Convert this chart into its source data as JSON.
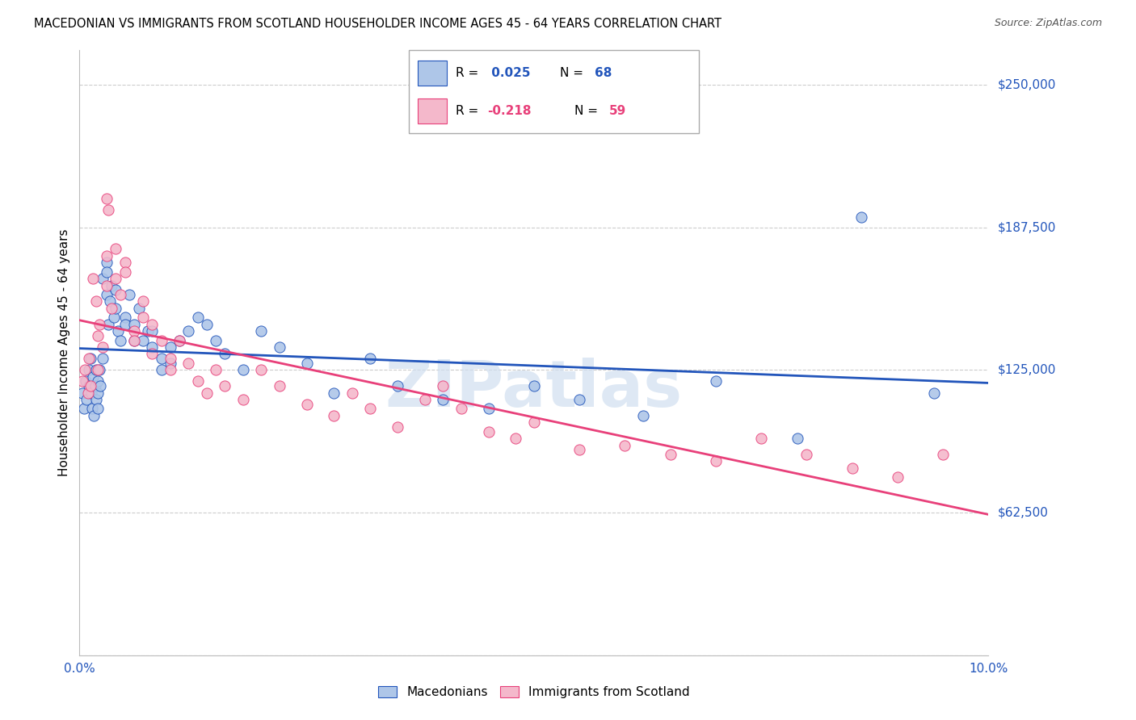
{
  "title": "MACEDONIAN VS IMMIGRANTS FROM SCOTLAND HOUSEHOLDER INCOME AGES 45 - 64 YEARS CORRELATION CHART",
  "source": "Source: ZipAtlas.com",
  "ylabel": "Householder Income Ages 45 - 64 years",
  "xlim": [
    0.0,
    0.1
  ],
  "ylim": [
    0,
    265000
  ],
  "yticks": [
    0,
    62500,
    125000,
    187500,
    250000
  ],
  "ytick_labels": [
    "",
    "$62,500",
    "$125,000",
    "$187,500",
    "$250,000"
  ],
  "xticks": [
    0.0,
    0.01,
    0.02,
    0.03,
    0.04,
    0.05,
    0.06,
    0.07,
    0.08,
    0.09,
    0.1
  ],
  "xtick_labels": [
    "0.0%",
    "",
    "",
    "",
    "",
    "",
    "",
    "",
    "",
    "",
    "10.0%"
  ],
  "series1_color": "#aec6e8",
  "series2_color": "#f4b8cb",
  "line1_color": "#2255bb",
  "line2_color": "#e8407a",
  "watermark": "ZIPatlas",
  "macedonians_x": [
    0.0003,
    0.0005,
    0.0007,
    0.0008,
    0.001,
    0.001,
    0.0012,
    0.0013,
    0.0014,
    0.0015,
    0.0016,
    0.0017,
    0.0018,
    0.0018,
    0.002,
    0.002,
    0.002,
    0.0022,
    0.0023,
    0.0025,
    0.0025,
    0.003,
    0.003,
    0.003,
    0.0032,
    0.0033,
    0.0035,
    0.0038,
    0.004,
    0.004,
    0.0042,
    0.0045,
    0.005,
    0.005,
    0.0055,
    0.006,
    0.006,
    0.0065,
    0.007,
    0.0075,
    0.008,
    0.008,
    0.009,
    0.009,
    0.01,
    0.01,
    0.011,
    0.012,
    0.013,
    0.014,
    0.015,
    0.016,
    0.018,
    0.02,
    0.022,
    0.025,
    0.028,
    0.032,
    0.035,
    0.04,
    0.045,
    0.05,
    0.055,
    0.062,
    0.07,
    0.079,
    0.086,
    0.094
  ],
  "macedonians_y": [
    115000,
    108000,
    120000,
    112000,
    125000,
    118000,
    130000,
    115000,
    108000,
    122000,
    105000,
    118000,
    112000,
    125000,
    120000,
    115000,
    108000,
    125000,
    118000,
    130000,
    165000,
    172000,
    168000,
    158000,
    145000,
    155000,
    162000,
    148000,
    152000,
    160000,
    142000,
    138000,
    148000,
    145000,
    158000,
    145000,
    138000,
    152000,
    138000,
    142000,
    135000,
    142000,
    130000,
    125000,
    135000,
    128000,
    138000,
    142000,
    148000,
    145000,
    138000,
    132000,
    125000,
    142000,
    135000,
    128000,
    115000,
    130000,
    118000,
    112000,
    108000,
    118000,
    112000,
    105000,
    120000,
    95000,
    192000,
    115000
  ],
  "scotland_x": [
    0.0003,
    0.0006,
    0.0009,
    0.001,
    0.0012,
    0.0015,
    0.0018,
    0.002,
    0.002,
    0.0022,
    0.0025,
    0.003,
    0.003,
    0.003,
    0.0032,
    0.0035,
    0.004,
    0.004,
    0.0045,
    0.005,
    0.005,
    0.006,
    0.006,
    0.007,
    0.007,
    0.008,
    0.008,
    0.009,
    0.01,
    0.01,
    0.011,
    0.012,
    0.013,
    0.014,
    0.015,
    0.016,
    0.018,
    0.02,
    0.022,
    0.025,
    0.028,
    0.03,
    0.032,
    0.035,
    0.038,
    0.04,
    0.042,
    0.045,
    0.048,
    0.05,
    0.055,
    0.06,
    0.065,
    0.07,
    0.075,
    0.08,
    0.085,
    0.09,
    0.095
  ],
  "scotland_y": [
    120000,
    125000,
    115000,
    130000,
    118000,
    165000,
    155000,
    140000,
    125000,
    145000,
    135000,
    200000,
    175000,
    162000,
    195000,
    152000,
    178000,
    165000,
    158000,
    172000,
    168000,
    142000,
    138000,
    148000,
    155000,
    145000,
    132000,
    138000,
    130000,
    125000,
    138000,
    128000,
    120000,
    115000,
    125000,
    118000,
    112000,
    125000,
    118000,
    110000,
    105000,
    115000,
    108000,
    100000,
    112000,
    118000,
    108000,
    98000,
    95000,
    102000,
    90000,
    92000,
    88000,
    85000,
    95000,
    88000,
    82000,
    78000,
    88000
  ]
}
